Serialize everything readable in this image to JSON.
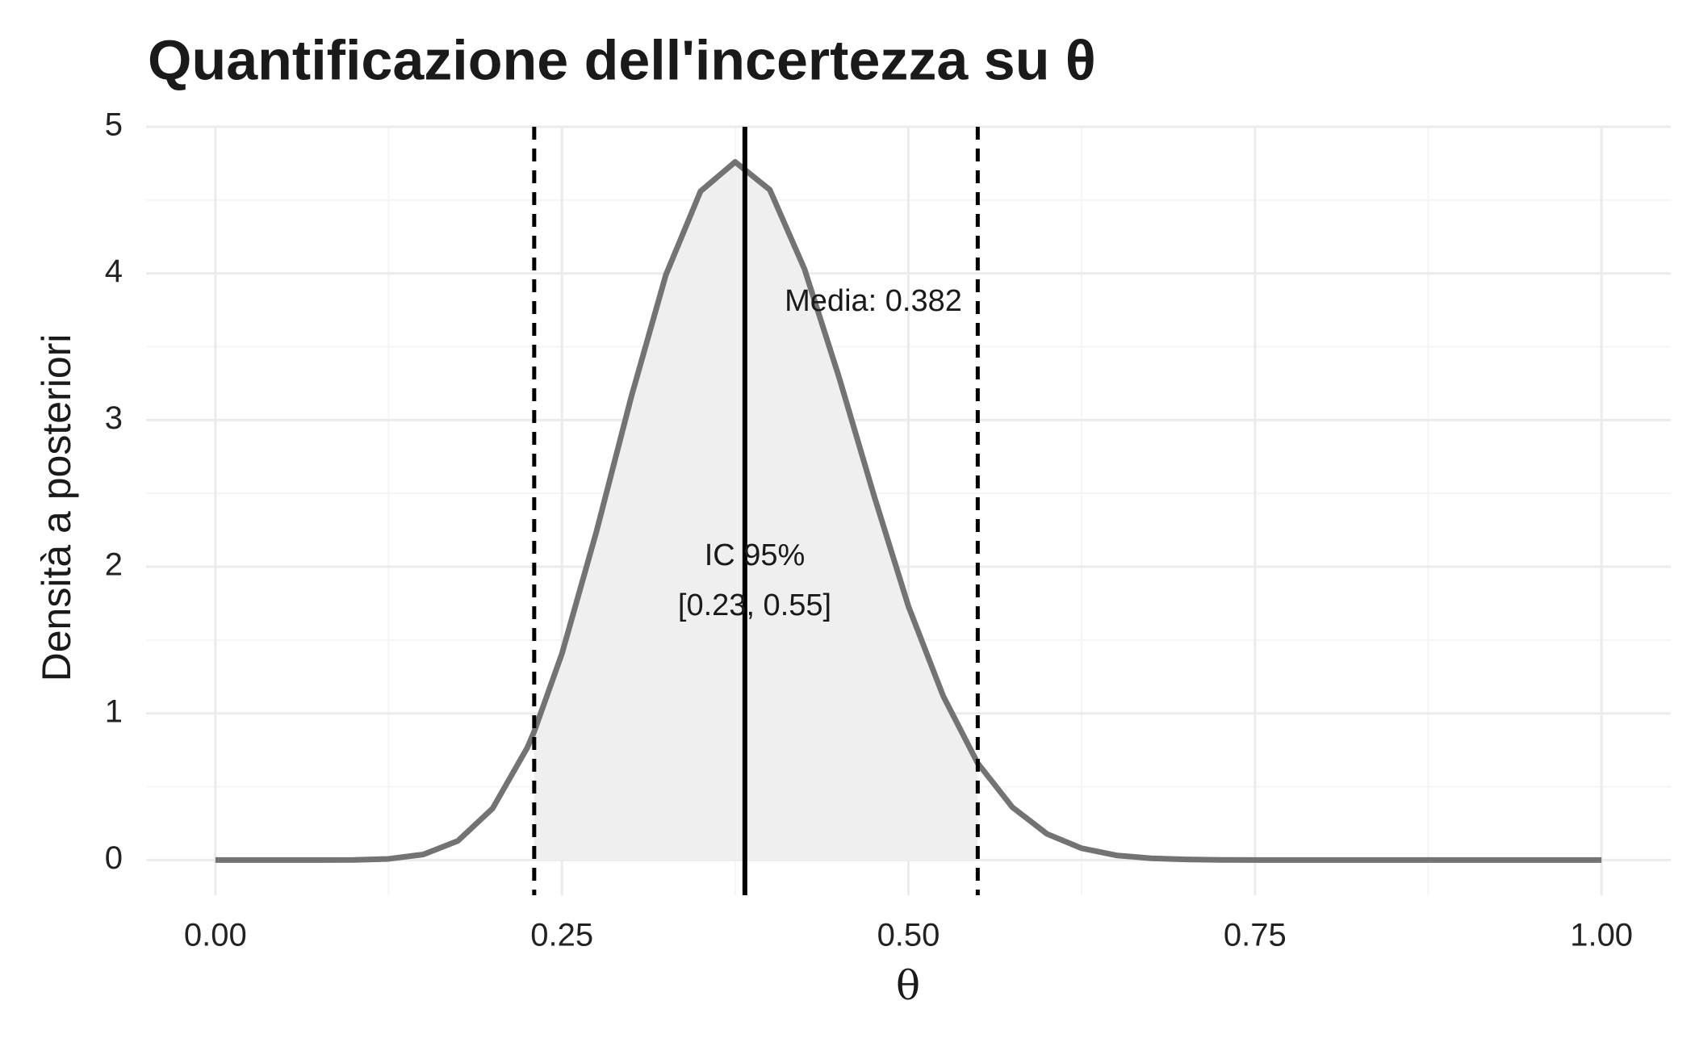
{
  "chart_data": {
    "type": "area-line",
    "title": "Quantificazione dell'incertezza su θ",
    "x_label": "θ",
    "y_label": "Densità a posteriori",
    "x": [
      0,
      0.025,
      0.05,
      0.075,
      0.1,
      0.125,
      0.15,
      0.175,
      0.2,
      0.225,
      0.23,
      0.25,
      0.275,
      0.3,
      0.325,
      0.35,
      0.375,
      0.4,
      0.425,
      0.45,
      0.475,
      0.5,
      0.525,
      0.55,
      0.575,
      0.6,
      0.625,
      0.65,
      0.675,
      0.7,
      0.725,
      0.75,
      0.775,
      0.8,
      0.85,
      0.9,
      0.95,
      1
    ],
    "series": [
      {
        "color": "#737373",
        "values": [
          0,
          0,
          0,
          0,
          0.001,
          0.008,
          0.038,
          0.131,
          0.352,
          0.766,
          0.876,
          1.407,
          2.243,
          3.157,
          3.99,
          4.56,
          4.76,
          4.57,
          4.03,
          3.29,
          2.49,
          1.73,
          1.12,
          0.66,
          0.36,
          0.178,
          0.08,
          0.032,
          0.012,
          0.004,
          0.001,
          0,
          0,
          0,
          0,
          0,
          0,
          0
        ]
      }
    ],
    "ci": [
      0.23,
      0.55
    ],
    "mean": 0.382,
    "shade_color": "#efefef",
    "annotations": [
      "Media: 0.382",
      "IC 95%",
      "[0.23, 0.55]"
    ],
    "xlim": [
      -0.05,
      1.05
    ],
    "ylim": [
      -0.24,
      5
    ],
    "xticks": [
      {
        "value": 0,
        "label": "0.00"
      },
      0.25,
      {
        "value": 0.5,
        "label": "0.50"
      },
      0.75,
      {
        "value": 1,
        "label": "1.00"
      }
    ],
    "yticks": [
      0,
      1,
      2,
      3,
      4,
      5
    ],
    "minor_xticks": [
      0.125,
      0.375,
      0.625,
      0.875
    ],
    "minor_yticks": [
      0.5,
      1.5,
      2.5,
      3.5,
      4.5
    ],
    "grid": true
  }
}
